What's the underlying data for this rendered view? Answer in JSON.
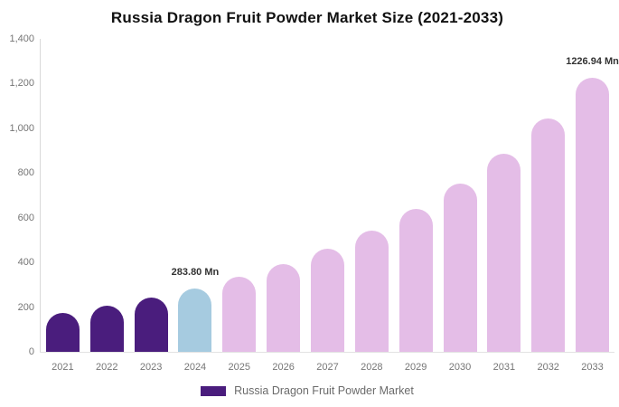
{
  "chart_data": {
    "type": "bar",
    "title": "Russia Dragon Fruit Powder Market Size (2021-2033)",
    "series_name": "Russia Dragon Fruit Powder Market",
    "categories": [
      "2021",
      "2022",
      "2023",
      "2024",
      "2025",
      "2026",
      "2027",
      "2028",
      "2029",
      "2030",
      "2031",
      "2032",
      "2033"
    ],
    "values": [
      174.2,
      205.0,
      241.2,
      283.8,
      334.0,
      393.0,
      462.4,
      544.2,
      640.3,
      753.5,
      886.6,
      1043.3,
      1226.94
    ],
    "unit": "Mn",
    "ylim": [
      0,
      1400
    ],
    "yticks": [
      0,
      200,
      400,
      600,
      800,
      1000,
      1200,
      1400
    ],
    "ytick_labels": [
      "0",
      "200",
      "400",
      "600",
      "800",
      "1,000",
      "1,200",
      "1,400"
    ],
    "grid": "none",
    "legend_position": "bottom",
    "annotations": [
      {
        "category": "2024",
        "text": "283.80 Mn"
      },
      {
        "category": "2033",
        "text": "1226.94 Mn"
      }
    ],
    "bar_groups": [
      "historical",
      "historical",
      "historical",
      "current",
      "forecast",
      "forecast",
      "forecast",
      "forecast",
      "forecast",
      "forecast",
      "forecast",
      "forecast",
      "forecast"
    ],
    "colors": {
      "historical": "#4A1D7D",
      "current": "#A6CBE0",
      "forecast": "#E4BDE7"
    }
  },
  "legend": {
    "label": "Russia Dragon Fruit Powder Market",
    "swatch_color": "#4A1D7D"
  },
  "axis": {
    "text_color": "#757575",
    "line_color": "#D9D9D9"
  }
}
